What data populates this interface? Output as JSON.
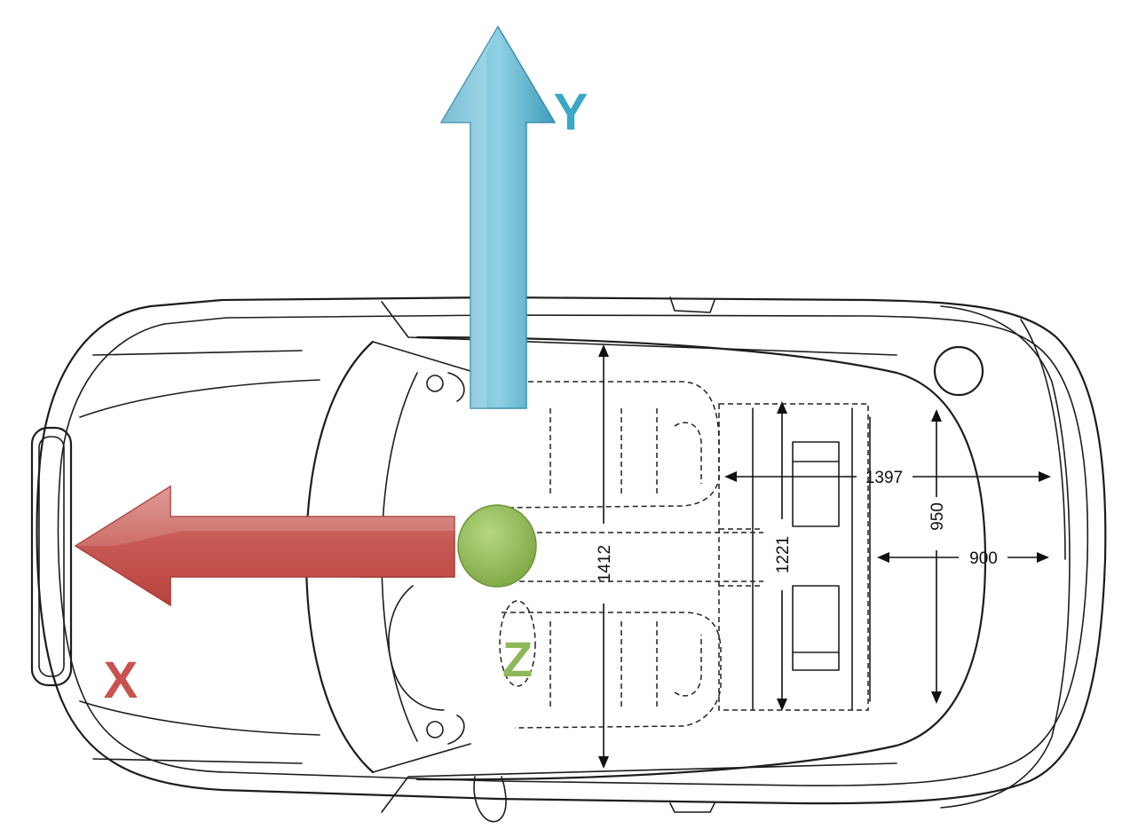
{
  "axes": {
    "x": {
      "label": "X",
      "color": "#c9514e"
    },
    "y": {
      "label": "Y",
      "color": "#3aa7c6"
    },
    "z": {
      "label": "Z",
      "color": "#8db858"
    }
  },
  "dimensions": {
    "d1412": "1412",
    "d1221": "1221",
    "d1397": "1397",
    "d950": "950",
    "d900": "900"
  }
}
